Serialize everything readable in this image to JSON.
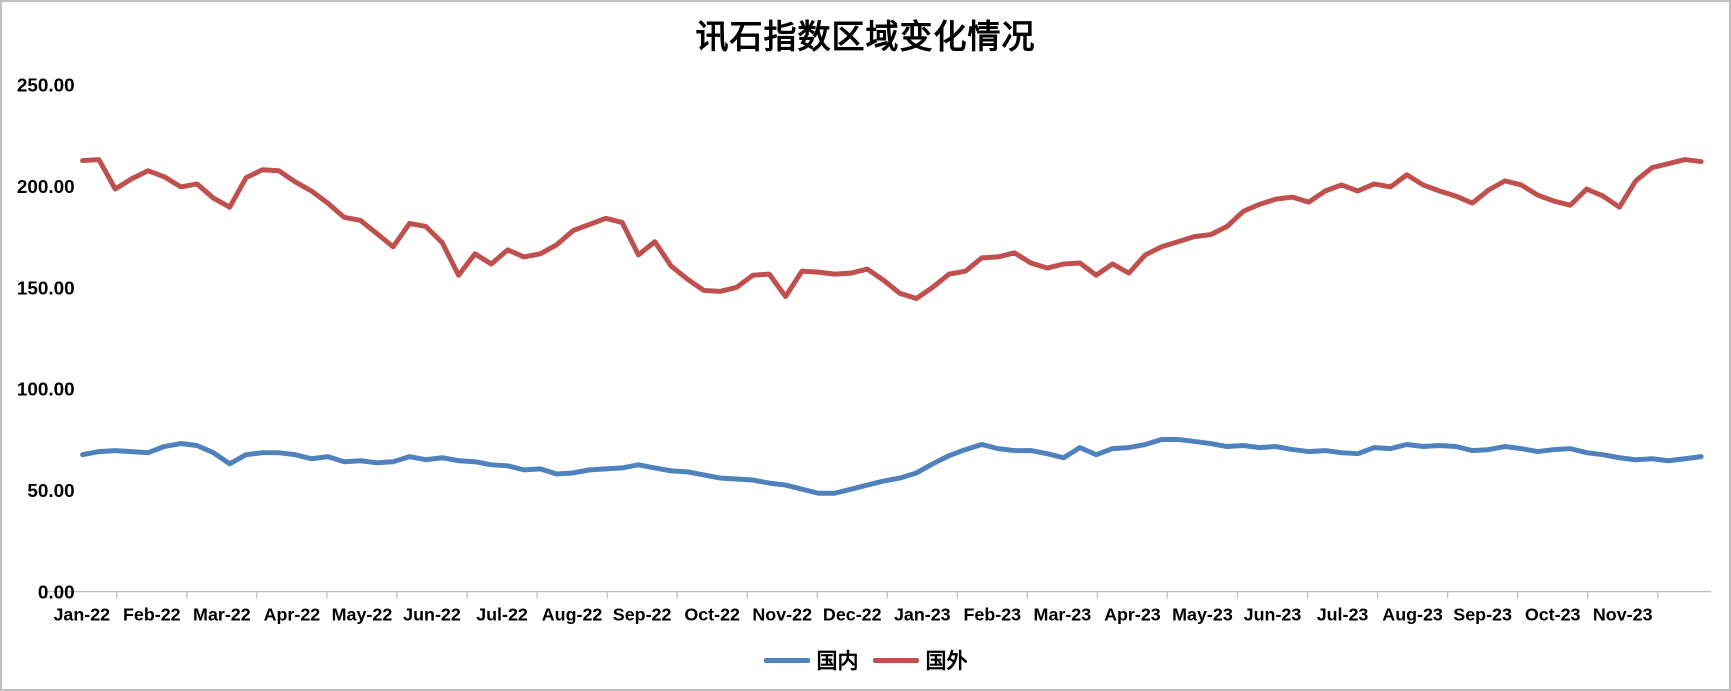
{
  "chart_data": {
    "type": "line",
    "title": "讯石指数区域变化情况",
    "legend_position": "bottom",
    "grid": false,
    "x_axis": {
      "categories": [
        "Jan-22",
        "Feb-22",
        "Mar-22",
        "Apr-22",
        "May-22",
        "Jun-22",
        "Jul-22",
        "Aug-22",
        "Sep-22",
        "Oct-22",
        "Nov-22",
        "Dec-22",
        "Jan-23",
        "Feb-23",
        "Mar-23",
        "Apr-23",
        "May-23",
        "Jun-23",
        "Jul-23",
        "Aug-23",
        "Sep-23",
        "Oct-23",
        "Nov-23"
      ],
      "points_per_month": "weekly"
    },
    "y_axis": {
      "min": 0,
      "max": 250,
      "tick_step": 50,
      "ticks": [
        0,
        50,
        100,
        150,
        200,
        250
      ],
      "tick_format_decimals": 2
    },
    "axis_color": "#bfbfbf",
    "series": [
      {
        "name": "国内",
        "key": "domestic",
        "color": "#4F81BD",
        "values": [
          67.5,
          69,
          69.5,
          69,
          68.5,
          71.5,
          73,
          72,
          68.5,
          63,
          67.5,
          68.5,
          68.5,
          67.5,
          65.5,
          66.5,
          64,
          64.5,
          63.5,
          64,
          66.5,
          65,
          66,
          64.5,
          64,
          62.5,
          62,
          60,
          60.5,
          58,
          58.5,
          60,
          60.5,
          61,
          62.5,
          61,
          59.5,
          59,
          57.5,
          56,
          55.5,
          55,
          53.5,
          52.5,
          50.5,
          48.5,
          48.5,
          50.5,
          52.5,
          54.5,
          56,
          58.5,
          63,
          67,
          70,
          72.5,
          70.5,
          69.5,
          69.5,
          68,
          66,
          71,
          67.5,
          70.5,
          71,
          72.5,
          75,
          75,
          74,
          73,
          71.5,
          72,
          71,
          71.5,
          70,
          69,
          69.5,
          68.5,
          68,
          71,
          70.5,
          72.5,
          71.5,
          72,
          71.5,
          69.5,
          70,
          71.5,
          70.5,
          69,
          70,
          70.5,
          68.5,
          67.5,
          66,
          65,
          65.5,
          64.5,
          65.5,
          66.5
        ]
      },
      {
        "name": "国外",
        "key": "foreign",
        "color": "#C0504D",
        "values": [
          212.5,
          213,
          198.5,
          203.5,
          207.5,
          204.5,
          199.5,
          201,
          194,
          189.5,
          204,
          208,
          207.5,
          202,
          197.5,
          191.5,
          184.5,
          183,
          176.5,
          170,
          181.5,
          180,
          172,
          156,
          166.5,
          161.5,
          168.5,
          165,
          166.5,
          171,
          178,
          181,
          184,
          182,
          166,
          172.5,
          160.5,
          154,
          148.5,
          148,
          150,
          156,
          156.5,
          145.5,
          158,
          157.5,
          156.5,
          157,
          159,
          153.5,
          147,
          144.5,
          150,
          156.5,
          158,
          164.5,
          165,
          167,
          162,
          159.5,
          161.5,
          162,
          156,
          161.5,
          157,
          166,
          170,
          172.5,
          175,
          176,
          180,
          187.5,
          191,
          193.5,
          194.5,
          192,
          197.5,
          200.5,
          197.5,
          201,
          199.5,
          205.5,
          200.5,
          197.5,
          195,
          191.5,
          198,
          202.5,
          200.5,
          195.5,
          192.5,
          190.5,
          198.5,
          195,
          189.5,
          202.5,
          209,
          211,
          213,
          212
        ]
      }
    ]
  }
}
